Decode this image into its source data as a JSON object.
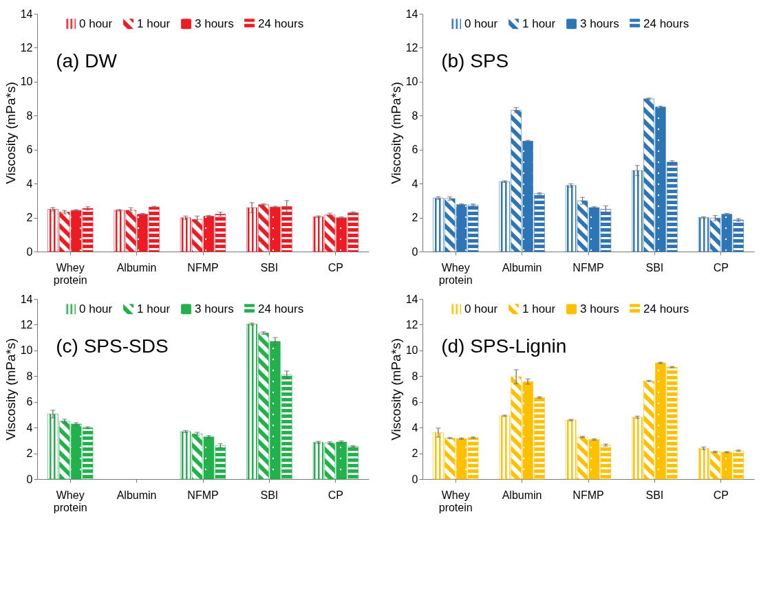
{
  "chart_data": [
    {
      "type": "bar",
      "title": "(a) DW",
      "ylabel": "Viscosity (mPa*s)",
      "categories": [
        "Whey protein",
        "Albumin",
        "NFMP",
        "SBI",
        "CP"
      ],
      "ylim": [
        0,
        14
      ],
      "yticks": [
        0,
        2,
        4,
        6,
        8,
        10,
        12,
        14
      ],
      "legend": "top",
      "series": [
        {
          "name": "0 hour",
          "color": "#ed1c24",
          "values": [
            2.49,
            2.43,
            1.99,
            2.58,
            2.05
          ],
          "errors": [
            0.1,
            0.05,
            0.1,
            0.3,
            0.05
          ]
        },
        {
          "name": "1 hour",
          "color": "#ed1c24",
          "values": [
            2.32,
            2.43,
            1.89,
            2.76,
            2.16
          ],
          "errors": [
            0.1,
            0.15,
            0.2,
            0.05,
            0.1
          ]
        },
        {
          "name": "3 hours",
          "color": "#ed1c24",
          "values": [
            2.42,
            2.2,
            2.08,
            2.62,
            1.99
          ],
          "errors": [
            0.05,
            0.05,
            0.05,
            0.05,
            0.05
          ]
        },
        {
          "name": "24 hours",
          "color": "#ed1c24",
          "values": [
            2.54,
            2.62,
            2.2,
            2.65,
            2.28
          ],
          "errors": [
            0.1,
            0.05,
            0.12,
            0.35,
            0.05
          ]
        }
      ]
    },
    {
      "type": "bar",
      "title": "(b) SPS",
      "ylabel": "Viscosity (mPa*s)",
      "categories": [
        "Whey protein",
        "Albumin",
        "NFMP",
        "SBI",
        "CP"
      ],
      "ylim": [
        0,
        14
      ],
      "yticks": [
        0,
        2,
        4,
        6,
        8,
        10,
        12,
        14
      ],
      "legend": "top",
      "series": [
        {
          "name": "0 hour",
          "color": "#2e75b6",
          "values": [
            3.15,
            4.12,
            3.89,
            4.77,
            2.0
          ],
          "errors": [
            0.08,
            0.05,
            0.1,
            0.3,
            0.05
          ]
        },
        {
          "name": "1 hour",
          "color": "#2e75b6",
          "values": [
            3.12,
            8.32,
            2.99,
            8.99,
            1.97
          ],
          "errors": [
            0.1,
            0.15,
            0.2,
            0.05,
            0.15
          ]
        },
        {
          "name": "3 hours",
          "color": "#2e75b6",
          "values": [
            2.76,
            6.5,
            2.59,
            8.51,
            2.2
          ],
          "errors": [
            0.05,
            0.05,
            0.05,
            0.05,
            0.05
          ]
        },
        {
          "name": "24 hours",
          "color": "#2e75b6",
          "values": [
            2.74,
            3.41,
            2.49,
            5.27,
            1.86
          ],
          "errors": [
            0.06,
            0.05,
            0.2,
            0.08,
            0.08
          ]
        }
      ]
    },
    {
      "type": "bar",
      "title": "(c) SPS-SDS",
      "ylabel": "Viscosity (mPa*s)",
      "categories": [
        "Whey protein",
        "Albumin",
        "NFMP",
        "SBI",
        "CP"
      ],
      "ylim": [
        0,
        14
      ],
      "yticks": [
        0,
        2,
        4,
        6,
        8,
        10,
        12,
        14
      ],
      "legend": "top",
      "series": [
        {
          "name": "0 hour",
          "color": "#22b14c",
          "values": [
            5.05,
            null,
            3.69,
            12.05,
            2.85
          ],
          "errors": [
            0.3,
            null,
            0.08,
            0.08,
            0.08
          ]
        },
        {
          "name": "1 hour",
          "color": "#22b14c",
          "values": [
            4.5,
            null,
            3.51,
            11.35,
            2.8
          ],
          "errors": [
            0.15,
            null,
            0.12,
            0.1,
            0.1
          ]
        },
        {
          "name": "3 hours",
          "color": "#22b14c",
          "values": [
            4.28,
            null,
            3.28,
            10.7,
            2.88
          ],
          "errors": [
            0.1,
            null,
            0.1,
            0.3,
            0.08
          ]
        },
        {
          "name": "24 hours",
          "color": "#22b14c",
          "values": [
            3.99,
            null,
            2.6,
            8.1,
            2.54
          ],
          "errors": [
            0.08,
            null,
            0.15,
            0.3,
            0.05
          ]
        }
      ]
    },
    {
      "type": "bar",
      "title": "(d) SPS-Lignin",
      "ylabel": "Viscosity (mPa*s)",
      "categories": [
        "Whey protein",
        "Albumin",
        "NFMP",
        "SBI",
        "CP"
      ],
      "ylim": [
        0,
        14
      ],
      "yticks": [
        0,
        2,
        4,
        6,
        8,
        10,
        12,
        14
      ],
      "legend": "top",
      "series": [
        {
          "name": "0 hour",
          "color": "#ffc000",
          "values": [
            3.61,
            4.92,
            4.58,
            4.81,
            2.39
          ],
          "errors": [
            0.35,
            0.05,
            0.05,
            0.08,
            0.1
          ]
        },
        {
          "name": "1 hour",
          "color": "#ffc000",
          "values": [
            3.18,
            7.95,
            3.27,
            7.62,
            2.11
          ],
          "errors": [
            0.05,
            0.55,
            0.05,
            0.05,
            0.05
          ]
        },
        {
          "name": "3 hours",
          "color": "#ffc000",
          "values": [
            3.14,
            7.58,
            3.07,
            9.03,
            2.09
          ],
          "errors": [
            0.05,
            0.2,
            0.05,
            0.05,
            0.05
          ]
        },
        {
          "name": "24 hours",
          "color": "#ffc000",
          "values": [
            3.22,
            6.34,
            2.64,
            8.7,
            2.2
          ],
          "errors": [
            0.05,
            0.05,
            0.08,
            0.05,
            0.05
          ]
        }
      ]
    }
  ]
}
